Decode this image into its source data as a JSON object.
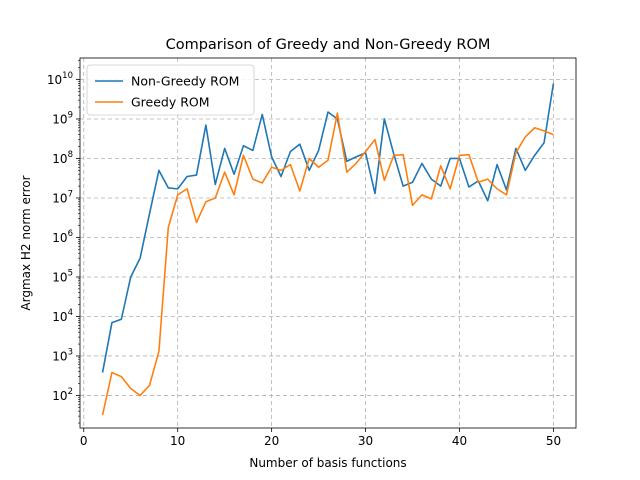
{
  "chart_data": {
    "type": "line",
    "title": "Comparison of Greedy and Non-Greedy ROM",
    "xlabel": "Number of basis functions",
    "ylabel": "Argmax H2 norm error",
    "xlim": [
      -0.4,
      52.4
    ],
    "ylim": [
      15,
      35000000000.0
    ],
    "yscale": "log",
    "grid": true,
    "legend_position": "upper-left",
    "x_ticks": [
      0,
      10,
      20,
      30,
      40,
      50
    ],
    "x_tick_labels": [
      "0",
      "10",
      "20",
      "30",
      "40",
      "50"
    ],
    "y_ticks": [
      100,
      1000,
      10000,
      100000,
      1000000,
      10000000,
      100000000,
      1000000000,
      10000000000
    ],
    "y_tick_labels": [
      {
        "base": "10",
        "exp": "2"
      },
      {
        "base": "10",
        "exp": "3"
      },
      {
        "base": "10",
        "exp": "4"
      },
      {
        "base": "10",
        "exp": "5"
      },
      {
        "base": "10",
        "exp": "6"
      },
      {
        "base": "10",
        "exp": "7"
      },
      {
        "base": "10",
        "exp": "8"
      },
      {
        "base": "10",
        "exp": "9"
      },
      {
        "base": "10",
        "exp": "10"
      }
    ],
    "x": [
      2,
      3,
      4,
      5,
      6,
      7,
      8,
      9,
      10,
      11,
      12,
      13,
      14,
      15,
      16,
      17,
      18,
      19,
      20,
      21,
      22,
      23,
      24,
      25,
      26,
      27,
      28,
      29,
      30,
      31,
      32,
      33,
      34,
      35,
      36,
      37,
      38,
      39,
      40,
      41,
      42,
      43,
      44,
      45,
      46,
      47,
      48,
      49,
      50
    ],
    "series": [
      {
        "name": "Non-Greedy ROM",
        "color": "#1f77b4",
        "values": [
          380,
          7000,
          8500,
          100000,
          300000,
          4000000,
          50000000,
          18000000,
          17000000,
          35000000,
          38000000,
          700000000,
          22000000,
          180000000,
          40000000,
          210000000,
          160000000,
          1300000000,
          110000000,
          35000000,
          150000000,
          230000000,
          50000000,
          160000000,
          1500000000,
          1000000000,
          85000000,
          110000000,
          140000000,
          13000000,
          1000000000,
          130000000,
          20000000,
          25000000,
          75000000,
          30000000,
          20000000,
          100000000,
          100000000,
          19000000,
          27000000,
          8500000,
          70000000,
          16000000,
          180000000,
          50000000,
          120000000,
          250000000,
          8000000000
        ]
      },
      {
        "name": "Greedy ROM",
        "color": "#ff7f0e",
        "values": [
          32,
          380,
          300,
          150,
          100,
          180,
          1300,
          1800000,
          12000000,
          17000000,
          2400000,
          8000000,
          10000000,
          45000000,
          12000000,
          120000000,
          30000000,
          24000000,
          60000000,
          50000000,
          70000000,
          15000000,
          100000000,
          60000000,
          90000000,
          1400000000,
          45000000,
          75000000,
          150000000,
          300000000,
          28000000,
          120000000,
          125000000,
          6500000,
          12000000,
          9500000,
          65000000,
          17000000,
          120000000,
          125000000,
          25000000,
          30000000,
          17000000,
          12000000,
          140000000,
          350000000,
          600000000,
          500000000,
          400000000
        ]
      }
    ]
  }
}
